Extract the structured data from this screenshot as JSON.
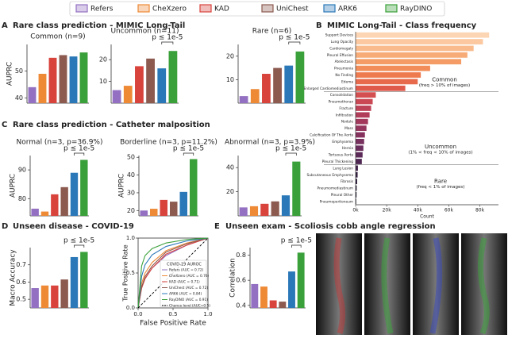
{
  "legend": {
    "labels": [
      "Refers",
      "CheXzero",
      "KAD",
      "UniChest",
      "ARK6",
      "RayDINO"
    ],
    "colors": [
      "#9370c2",
      "#ee8a36",
      "#d8433c",
      "#8c5a4f",
      "#2b78b8",
      "#3aa03a"
    ]
  },
  "panels": [
    {
      "letter": "A",
      "title": "Rare class prediction - MIMIC Long-Tail"
    },
    {
      "letter": "B",
      "title": "MIMIC Long-Tail - Class frequency"
    },
    {
      "letter": "C",
      "title": "Rare class prediction - Catheter malposition"
    },
    {
      "letter": "D",
      "title": "Unseen disease - COVID-19"
    },
    {
      "letter": "E",
      "title": "Unseen exam - Scoliosis cobb angle regression"
    }
  ],
  "chart_data": [
    {
      "type": "bar",
      "title": "Common (n=9)",
      "ylabel": "AUPRC",
      "values": [
        44,
        49,
        55,
        56,
        55.5,
        57
      ],
      "ylim": [
        38,
        60
      ],
      "yticks": [
        40,
        50
      ]
    },
    {
      "type": "bar",
      "title": "Uncommon (n=11)",
      "annotation": "p ≤ 1e-5",
      "values": [
        6,
        8,
        17,
        20.5,
        16,
        24
      ],
      "ylim": [
        0,
        27
      ],
      "yticks": [
        10,
        20
      ]
    },
    {
      "type": "bar",
      "title": "Rare (n=6)",
      "annotation": "p ≤ 1e-5",
      "values": [
        3,
        6,
        12.5,
        15,
        16,
        22
      ],
      "ylim": [
        0,
        25
      ],
      "yticks": [
        10,
        20
      ]
    },
    {
      "type": "bar",
      "title": "Normal (n=3, p=36.9%)",
      "ylabel": "AUPRC",
      "annotation": "p ≤ 1e-5",
      "values": [
        76.5,
        75.5,
        81.5,
        84,
        89,
        93.5
      ],
      "ylim": [
        74,
        95
      ],
      "yticks": [
        80,
        90
      ]
    },
    {
      "type": "bar",
      "title": "Borderline (n=3, p=11.2%)",
      "ylabel": "AUPRC",
      "annotation": "p ≤ 1e-5",
      "values": [
        20,
        21,
        26,
        25,
        30.5,
        49
      ],
      "ylim": [
        17,
        51
      ],
      "yticks": [
        20,
        30,
        40,
        50
      ]
    },
    {
      "type": "bar",
      "title": "Abnormal (n=3, p=3.9%)",
      "annotation": "p ≤ 1e-5",
      "values": [
        7,
        8,
        10,
        12,
        17,
        45
      ],
      "ylim": [
        0,
        50
      ],
      "yticks": [
        20,
        40
      ]
    },
    {
      "type": "bar",
      "ylabel": "Macro Accuracy",
      "annotation": "p ≤ 1e-5",
      "values": [
        0.565,
        0.58,
        0.58,
        0.615,
        0.745,
        0.775
      ],
      "ylim": [
        0.45,
        0.8
      ],
      "yticks": [
        0.5,
        0.6,
        0.7
      ]
    },
    {
      "type": "line",
      "xlabel": "False Positive Rate",
      "ylabel": "True Positive Rate",
      "legend_title": "COVID-19 AUROC",
      "xlim": [
        0,
        1
      ],
      "ylim": [
        0,
        1
      ],
      "xticks": [
        {
          "value": 0,
          "label": "0.0"
        },
        0.5,
        {
          "value": 1,
          "label": "1.0"
        }
      ],
      "yticks": [
        {
          "value": 0,
          "label": "0.0"
        },
        0.5,
        {
          "value": 1,
          "label": "1.0"
        }
      ],
      "series": [
        {
          "name": "Refers (AUC = 0.72)",
          "color": "#9370c2",
          "x": [
            0,
            0.05,
            0.1,
            0.2,
            0.4,
            0.7,
            1
          ],
          "values": [
            0,
            0.3,
            0.42,
            0.57,
            0.75,
            0.9,
            1
          ]
        },
        {
          "name": "CheXzero (AUC = 0.76)",
          "color": "#ee8a36",
          "x": [
            0,
            0.05,
            0.1,
            0.2,
            0.4,
            0.7,
            1
          ],
          "values": [
            0,
            0.35,
            0.5,
            0.65,
            0.82,
            0.93,
            1
          ]
        },
        {
          "name": "KAD (AUC = 0.71)",
          "color": "#d8433c",
          "x": [
            0,
            0.05,
            0.1,
            0.2,
            0.4,
            0.7,
            1
          ],
          "values": [
            0,
            0.28,
            0.42,
            0.57,
            0.77,
            0.9,
            1
          ]
        },
        {
          "name": "UniChest (AUC = 0.72)",
          "color": "#8c5a4f",
          "x": [
            0,
            0.05,
            0.1,
            0.2,
            0.4,
            0.7,
            1
          ],
          "values": [
            0,
            0.3,
            0.45,
            0.6,
            0.8,
            0.92,
            1
          ]
        },
        {
          "name": "ARK6 (AUC = 0.84)",
          "color": "#2b78b8",
          "x": [
            0,
            0.05,
            0.1,
            0.2,
            0.4,
            0.7,
            1
          ],
          "values": [
            0,
            0.45,
            0.62,
            0.76,
            0.88,
            0.96,
            1
          ]
        },
        {
          "name": "RayDINO (AUC = 0.91)",
          "color": "#3aa03a",
          "x": [
            0,
            0.05,
            0.1,
            0.2,
            0.4,
            0.7,
            1
          ],
          "values": [
            0,
            0.6,
            0.75,
            0.85,
            0.93,
            0.98,
            1
          ]
        },
        {
          "name": "Chance level (AUC=0.5)",
          "color": "#000000",
          "dash": true,
          "x": [
            0,
            1
          ],
          "values": [
            0,
            1
          ]
        }
      ]
    },
    {
      "type": "bar",
      "ylabel": "Correlation",
      "annotation": "p ≤ 1e-5",
      "values": [
        0.57,
        0.55,
        0.44,
        0.43,
        0.67,
        0.82
      ],
      "ylim": [
        0.38,
        0.86
      ],
      "yticks": [
        0.4,
        0.6,
        0.8
      ]
    },
    {
      "type": "hbar",
      "xlabel": "Count",
      "categories": [
        "Support Devices",
        "Lung Opacity",
        "Cardiomegaly",
        "Pleural Effusion",
        "Atelectasis",
        "Pneumonia",
        "No Finding",
        "Edema",
        "Enlarged Cardiomediastinum",
        "Consolidation",
        "Pneumothorax",
        "Fracture",
        "Infiltration",
        "Nodule",
        "Mass",
        "Calcification Of The Aorta",
        "Emphysema",
        "Hernia",
        "Tortuous Aorta",
        "Pleural Thickening",
        "Lung Lesion",
        "Subcutaneous Emphysema",
        "Fibrosis",
        "Pneumomediastinum",
        "Pleural Other",
        "Pneumoperitoneum"
      ],
      "values": [
        86000,
        82000,
        76000,
        72000,
        68000,
        48000,
        42000,
        40000,
        32000,
        13000,
        11000,
        10000,
        9000,
        8000,
        7000,
        6000,
        5500,
        5000,
        4500,
        4000,
        1500,
        1300,
        1000,
        700,
        600,
        400
      ],
      "colors": [
        "#fcd5b5",
        "#fbc8a0",
        "#f9bb8c",
        "#f7ac78",
        "#f59c66",
        "#f28c58",
        "#ee7b50",
        "#e86a4c",
        "#e05a4c",
        "#d44f50",
        "#c94854",
        "#bd4257",
        "#b03d5a",
        "#a2395c",
        "#94355d",
        "#86325e",
        "#78305e",
        "#6a2d5c",
        "#5c2a58",
        "#4f2753",
        "#42244c",
        "#362043",
        "#2b1c39",
        "#21172e",
        "#181223",
        "#100c18"
      ],
      "xlim": [
        0,
        92000
      ],
      "xticks": [
        {
          "value": 0,
          "label": "0k"
        },
        {
          "value": 20000,
          "label": "20k"
        },
        {
          "value": 40000,
          "label": "40k"
        },
        {
          "value": 60000,
          "label": "60k"
        },
        {
          "value": 80000,
          "label": "80k"
        }
      ],
      "annotations": [
        "Common",
        "(freq > 10% of images)",
        "Uncommon",
        "(1% < freq < 10% of images)",
        "Rare",
        "(freq < 1% of images)"
      ]
    }
  ]
}
